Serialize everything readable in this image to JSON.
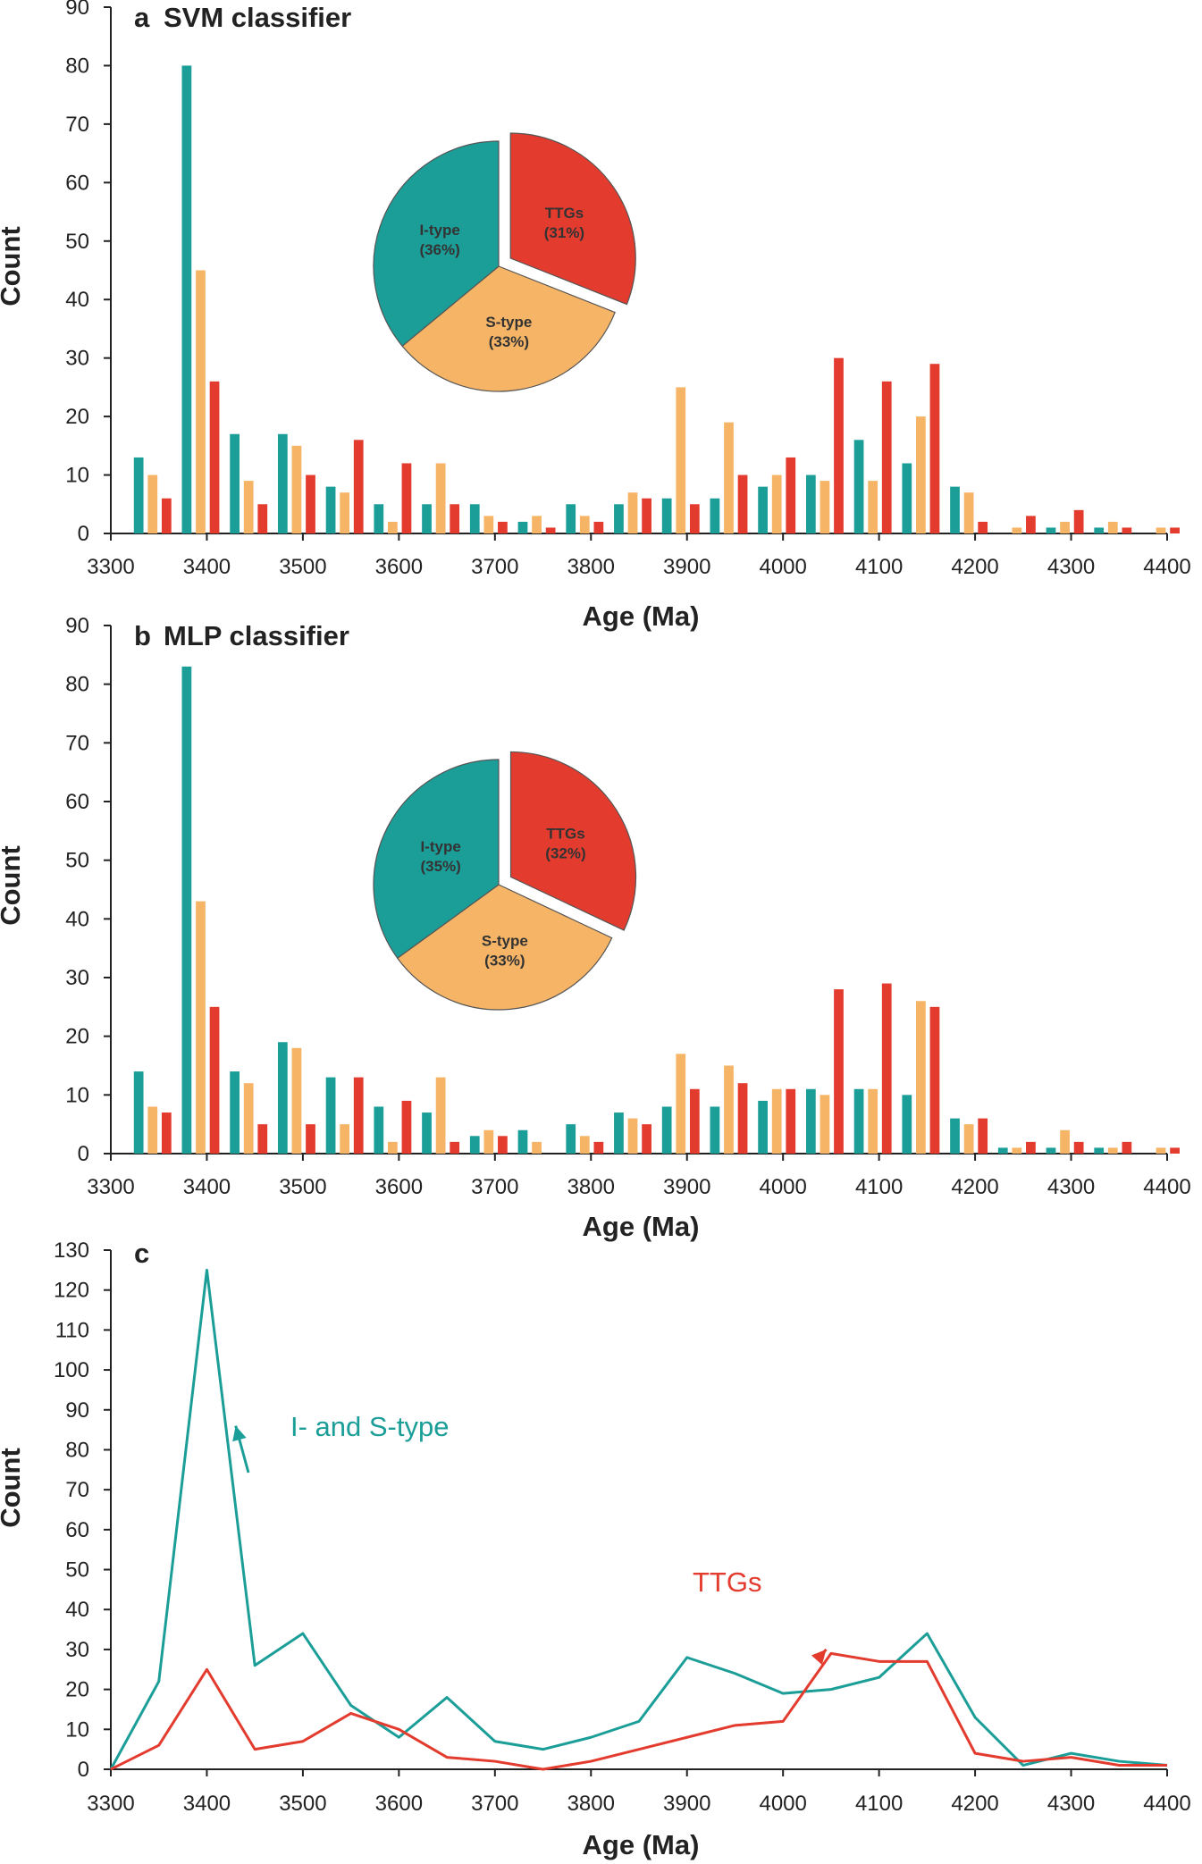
{
  "colors": {
    "itype": "#1c9e98",
    "stype": "#f5b466",
    "ttg": "#e33b2e",
    "axis": "#222222"
  },
  "chart_data": [
    {
      "id": "a",
      "type": "bar",
      "panel_letter": "a",
      "title": "SVM classifier",
      "xlabel": "Age (Ma)",
      "ylabel": "Count",
      "xlim": [
        3300,
        4400
      ],
      "ylim": [
        0,
        90
      ],
      "xticks": [
        3300,
        3400,
        3500,
        3600,
        3700,
        3800,
        3900,
        4000,
        4100,
        4200,
        4300,
        4400
      ],
      "yticks": [
        0,
        10,
        20,
        30,
        40,
        50,
        60,
        70,
        80,
        90
      ],
      "bin_centers": [
        3350,
        3400,
        3450,
        3500,
        3550,
        3600,
        3650,
        3700,
        3750,
        3800,
        3850,
        3900,
        3950,
        4000,
        4050,
        4100,
        4150,
        4200,
        4250,
        4300,
        4350,
        4400
      ],
      "series": [
        {
          "name": "I-type",
          "color_key": "itype",
          "values": [
            13,
            80,
            17,
            17,
            8,
            5,
            5,
            5,
            2,
            5,
            5,
            6,
            6,
            8,
            10,
            16,
            12,
            8,
            0,
            1,
            1,
            0
          ]
        },
        {
          "name": "S-type",
          "color_key": "stype",
          "values": [
            10,
            45,
            9,
            15,
            7,
            2,
            12,
            3,
            3,
            3,
            7,
            25,
            19,
            10,
            9,
            9,
            20,
            7,
            1,
            2,
            2,
            1
          ]
        },
        {
          "name": "TTGs",
          "color_key": "ttg",
          "values": [
            6,
            26,
            5,
            10,
            16,
            12,
            5,
            2,
            1,
            2,
            6,
            5,
            10,
            13,
            30,
            26,
            29,
            2,
            3,
            4,
            1,
            1
          ]
        }
      ],
      "pie": {
        "type": "pie",
        "slices": [
          {
            "label": "TTGs",
            "pct": "(31%)",
            "value": 31,
            "color_key": "ttg",
            "exploded": true
          },
          {
            "label": "S-type",
            "pct": "(33%)",
            "value": 33,
            "color_key": "stype",
            "exploded": false
          },
          {
            "label": "I-type",
            "pct": "(36%)",
            "value": 36,
            "color_key": "itype",
            "exploded": false
          }
        ]
      }
    },
    {
      "id": "b",
      "type": "bar",
      "panel_letter": "b",
      "title": "MLP classifier",
      "xlabel": "Age (Ma)",
      "ylabel": "Count",
      "xlim": [
        3300,
        4400
      ],
      "ylim": [
        0,
        90
      ],
      "xticks": [
        3300,
        3400,
        3500,
        3600,
        3700,
        3800,
        3900,
        4000,
        4100,
        4200,
        4300,
        4400
      ],
      "yticks": [
        0,
        10,
        20,
        30,
        40,
        50,
        60,
        70,
        80,
        90
      ],
      "bin_centers": [
        3350,
        3400,
        3450,
        3500,
        3550,
        3600,
        3650,
        3700,
        3750,
        3800,
        3850,
        3900,
        3950,
        4000,
        4050,
        4100,
        4150,
        4200,
        4250,
        4300,
        4350,
        4400
      ],
      "series": [
        {
          "name": "I-type",
          "color_key": "itype",
          "values": [
            14,
            83,
            14,
            19,
            13,
            8,
            7,
            3,
            4,
            5,
            7,
            8,
            8,
            9,
            11,
            11,
            10,
            6,
            1,
            1,
            1,
            0
          ]
        },
        {
          "name": "S-type",
          "color_key": "stype",
          "values": [
            8,
            43,
            12,
            18,
            5,
            2,
            13,
            4,
            2,
            3,
            6,
            17,
            15,
            11,
            10,
            11,
            26,
            5,
            1,
            4,
            1,
            1
          ]
        },
        {
          "name": "TTGs",
          "color_key": "ttg",
          "values": [
            7,
            25,
            5,
            5,
            13,
            9,
            2,
            3,
            0,
            2,
            5,
            11,
            12,
            11,
            28,
            29,
            25,
            6,
            2,
            2,
            2,
            1
          ]
        }
      ],
      "pie": {
        "type": "pie",
        "slices": [
          {
            "label": "TTGs",
            "pct": "(32%)",
            "value": 32,
            "color_key": "ttg",
            "exploded": true
          },
          {
            "label": "S-type",
            "pct": "(33%)",
            "value": 33,
            "color_key": "stype",
            "exploded": false
          },
          {
            "label": "I-type",
            "pct": "(35%)",
            "value": 35,
            "color_key": "itype",
            "exploded": false
          }
        ]
      }
    },
    {
      "id": "c",
      "type": "line",
      "panel_letter": "c",
      "title": "",
      "xlabel": "Age (Ma)",
      "ylabel": "Count",
      "xlim": [
        3300,
        4400
      ],
      "ylim": [
        0,
        130
      ],
      "xticks": [
        3300,
        3400,
        3500,
        3600,
        3700,
        3800,
        3900,
        4000,
        4100,
        4200,
        4300,
        4400
      ],
      "yticks": [
        0,
        10,
        20,
        30,
        40,
        50,
        60,
        70,
        80,
        90,
        100,
        110,
        120,
        130
      ],
      "x": [
        3300,
        3350,
        3400,
        3450,
        3500,
        3550,
        3600,
        3650,
        3700,
        3750,
        3800,
        3850,
        3900,
        3950,
        4000,
        4050,
        4100,
        4150,
        4200,
        4250,
        4300,
        4350,
        4400
      ],
      "series": [
        {
          "name": "I- and S-type",
          "color_key": "itype",
          "values": [
            0,
            22,
            125,
            26,
            34,
            16,
            8,
            18,
            7,
            5,
            8,
            12,
            28,
            24,
            19,
            20,
            23,
            34,
            13,
            1,
            4,
            2,
            1
          ]
        },
        {
          "name": "TTGs",
          "color_key": "ttg",
          "values": [
            0,
            6,
            25,
            5,
            7,
            14,
            10,
            3,
            2,
            0,
            2,
            5,
            8,
            11,
            12,
            29,
            27,
            27,
            4,
            2,
            3,
            1,
            1
          ]
        }
      ],
      "annotations": [
        {
          "text": "I- and S-type",
          "color_key": "itype",
          "target_x": 3430,
          "target_y": 86
        },
        {
          "text": "TTGs",
          "color_key": "ttg",
          "target_x": 4045,
          "target_y": 30
        }
      ]
    }
  ]
}
